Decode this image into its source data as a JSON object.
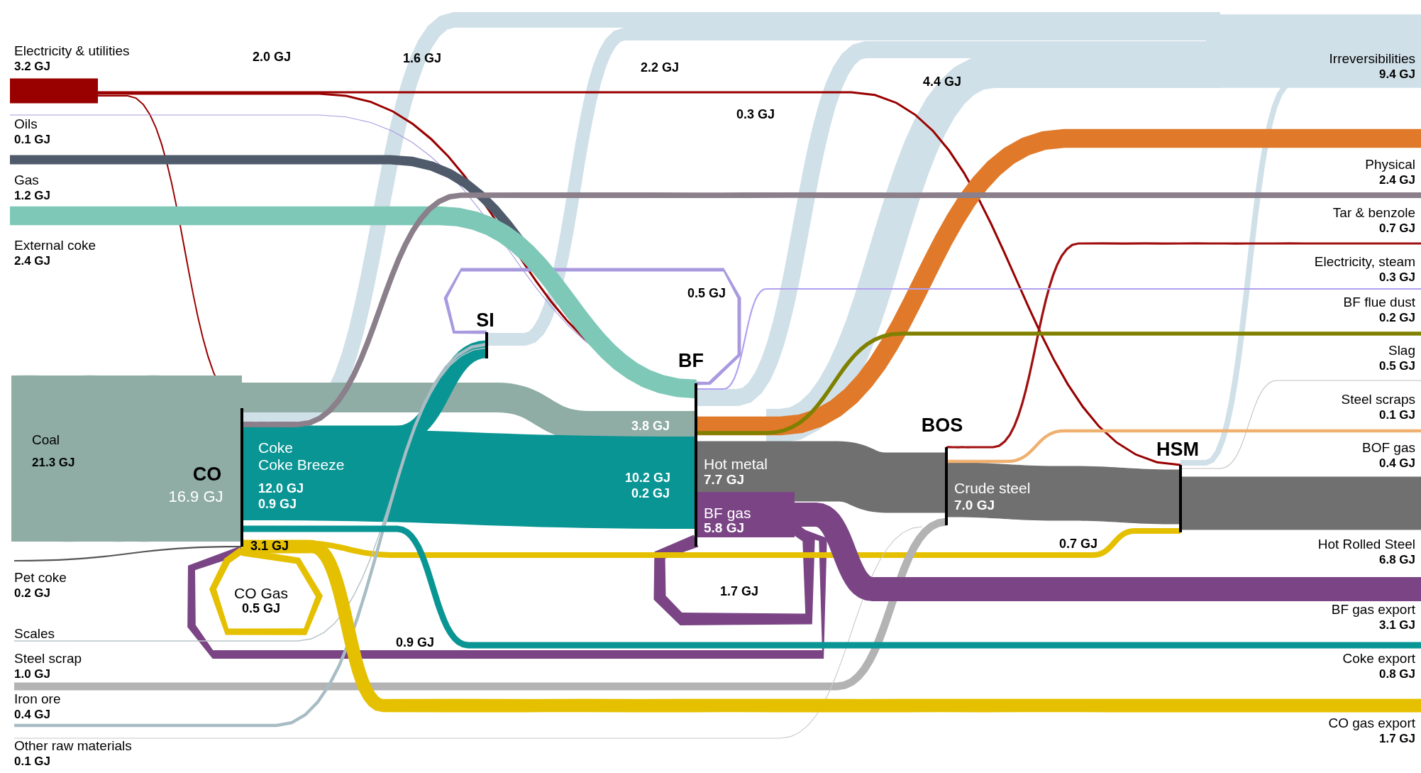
{
  "chart_data": {
    "type": "other",
    "categories": [
      "Electricity & utilities",
      "Oils",
      "Gas",
      "External coke",
      "Coal",
      "Pet coke",
      "Scales",
      "Steel scrap",
      "Iron ore",
      "Other raw materials",
      "Irreversibilities",
      "Physical",
      "Tar & benzole",
      "Electricity, steam",
      "BF flue dust",
      "Slag",
      "Steel scraps",
      "BOF gas",
      "Hot Rolled Steel",
      "BF gas export",
      "Coke export",
      "CO gas export"
    ],
    "values": [
      3.2,
      0.1,
      1.2,
      2.4,
      21.3,
      0.2,
      null,
      1.0,
      0.4,
      0.1,
      9.4,
      2.4,
      0.7,
      0.3,
      0.2,
      0.5,
      0.1,
      0.4,
      6.8,
      3.1,
      0.8,
      1.7
    ],
    "value_labels": [
      "3.2 GJ",
      "0.1 GJ",
      "1.2 GJ",
      "2.4 GJ",
      "21.3 GJ",
      "0.2 GJ",
      null,
      "1.0 GJ",
      "0.4 GJ",
      "0.1 GJ",
      "9.4 GJ",
      "2.4 GJ",
      "0.7 GJ",
      "0.3 GJ",
      "0.2 GJ",
      "0.5 GJ",
      "0.1 GJ",
      "0.4 GJ",
      "6.8 GJ",
      "3.1 GJ",
      "0.8 GJ",
      "1.7 GJ"
    ],
    "colors": [
      "#990000",
      "#a99ae0",
      "#4f5b6b",
      "#7ec8b8",
      "#8fada5",
      "#555555",
      "#b8c4c8",
      "#b3b3b3",
      "#a8bcc4",
      "#c8c8c8",
      "#d0e0e8",
      "#e07a2a",
      "#8a7f8a",
      "#a01010",
      "#b0a0f0",
      "#808000",
      "#c0c0c0",
      "#f0b070",
      "#707070",
      "#7b4585",
      "#0a9595",
      "#e5c000"
    ],
    "annotations": [
      "2.0 GJ",
      "1.6 GJ",
      "2.2 GJ",
      "4.4 GJ",
      "0.3 GJ",
      "0.5 GJ",
      "3.8 GJ",
      "10.2 GJ",
      "0.2 GJ",
      "12.0 GJ",
      "0.9 GJ",
      "3.1 GJ",
      "0.7 GJ",
      "1.7 GJ",
      "0.9 GJ",
      "CO",
      "16.9 GJ",
      "SI",
      "BF",
      "BOS",
      "HSM",
      "Coke",
      "Coke Breeze",
      "Hot metal",
      "7.7 GJ",
      "BF gas",
      "5.8 GJ",
      "Crude steel",
      "7.0 GJ",
      "CO Gas",
      "0.5 GJ"
    ]
  }
}
